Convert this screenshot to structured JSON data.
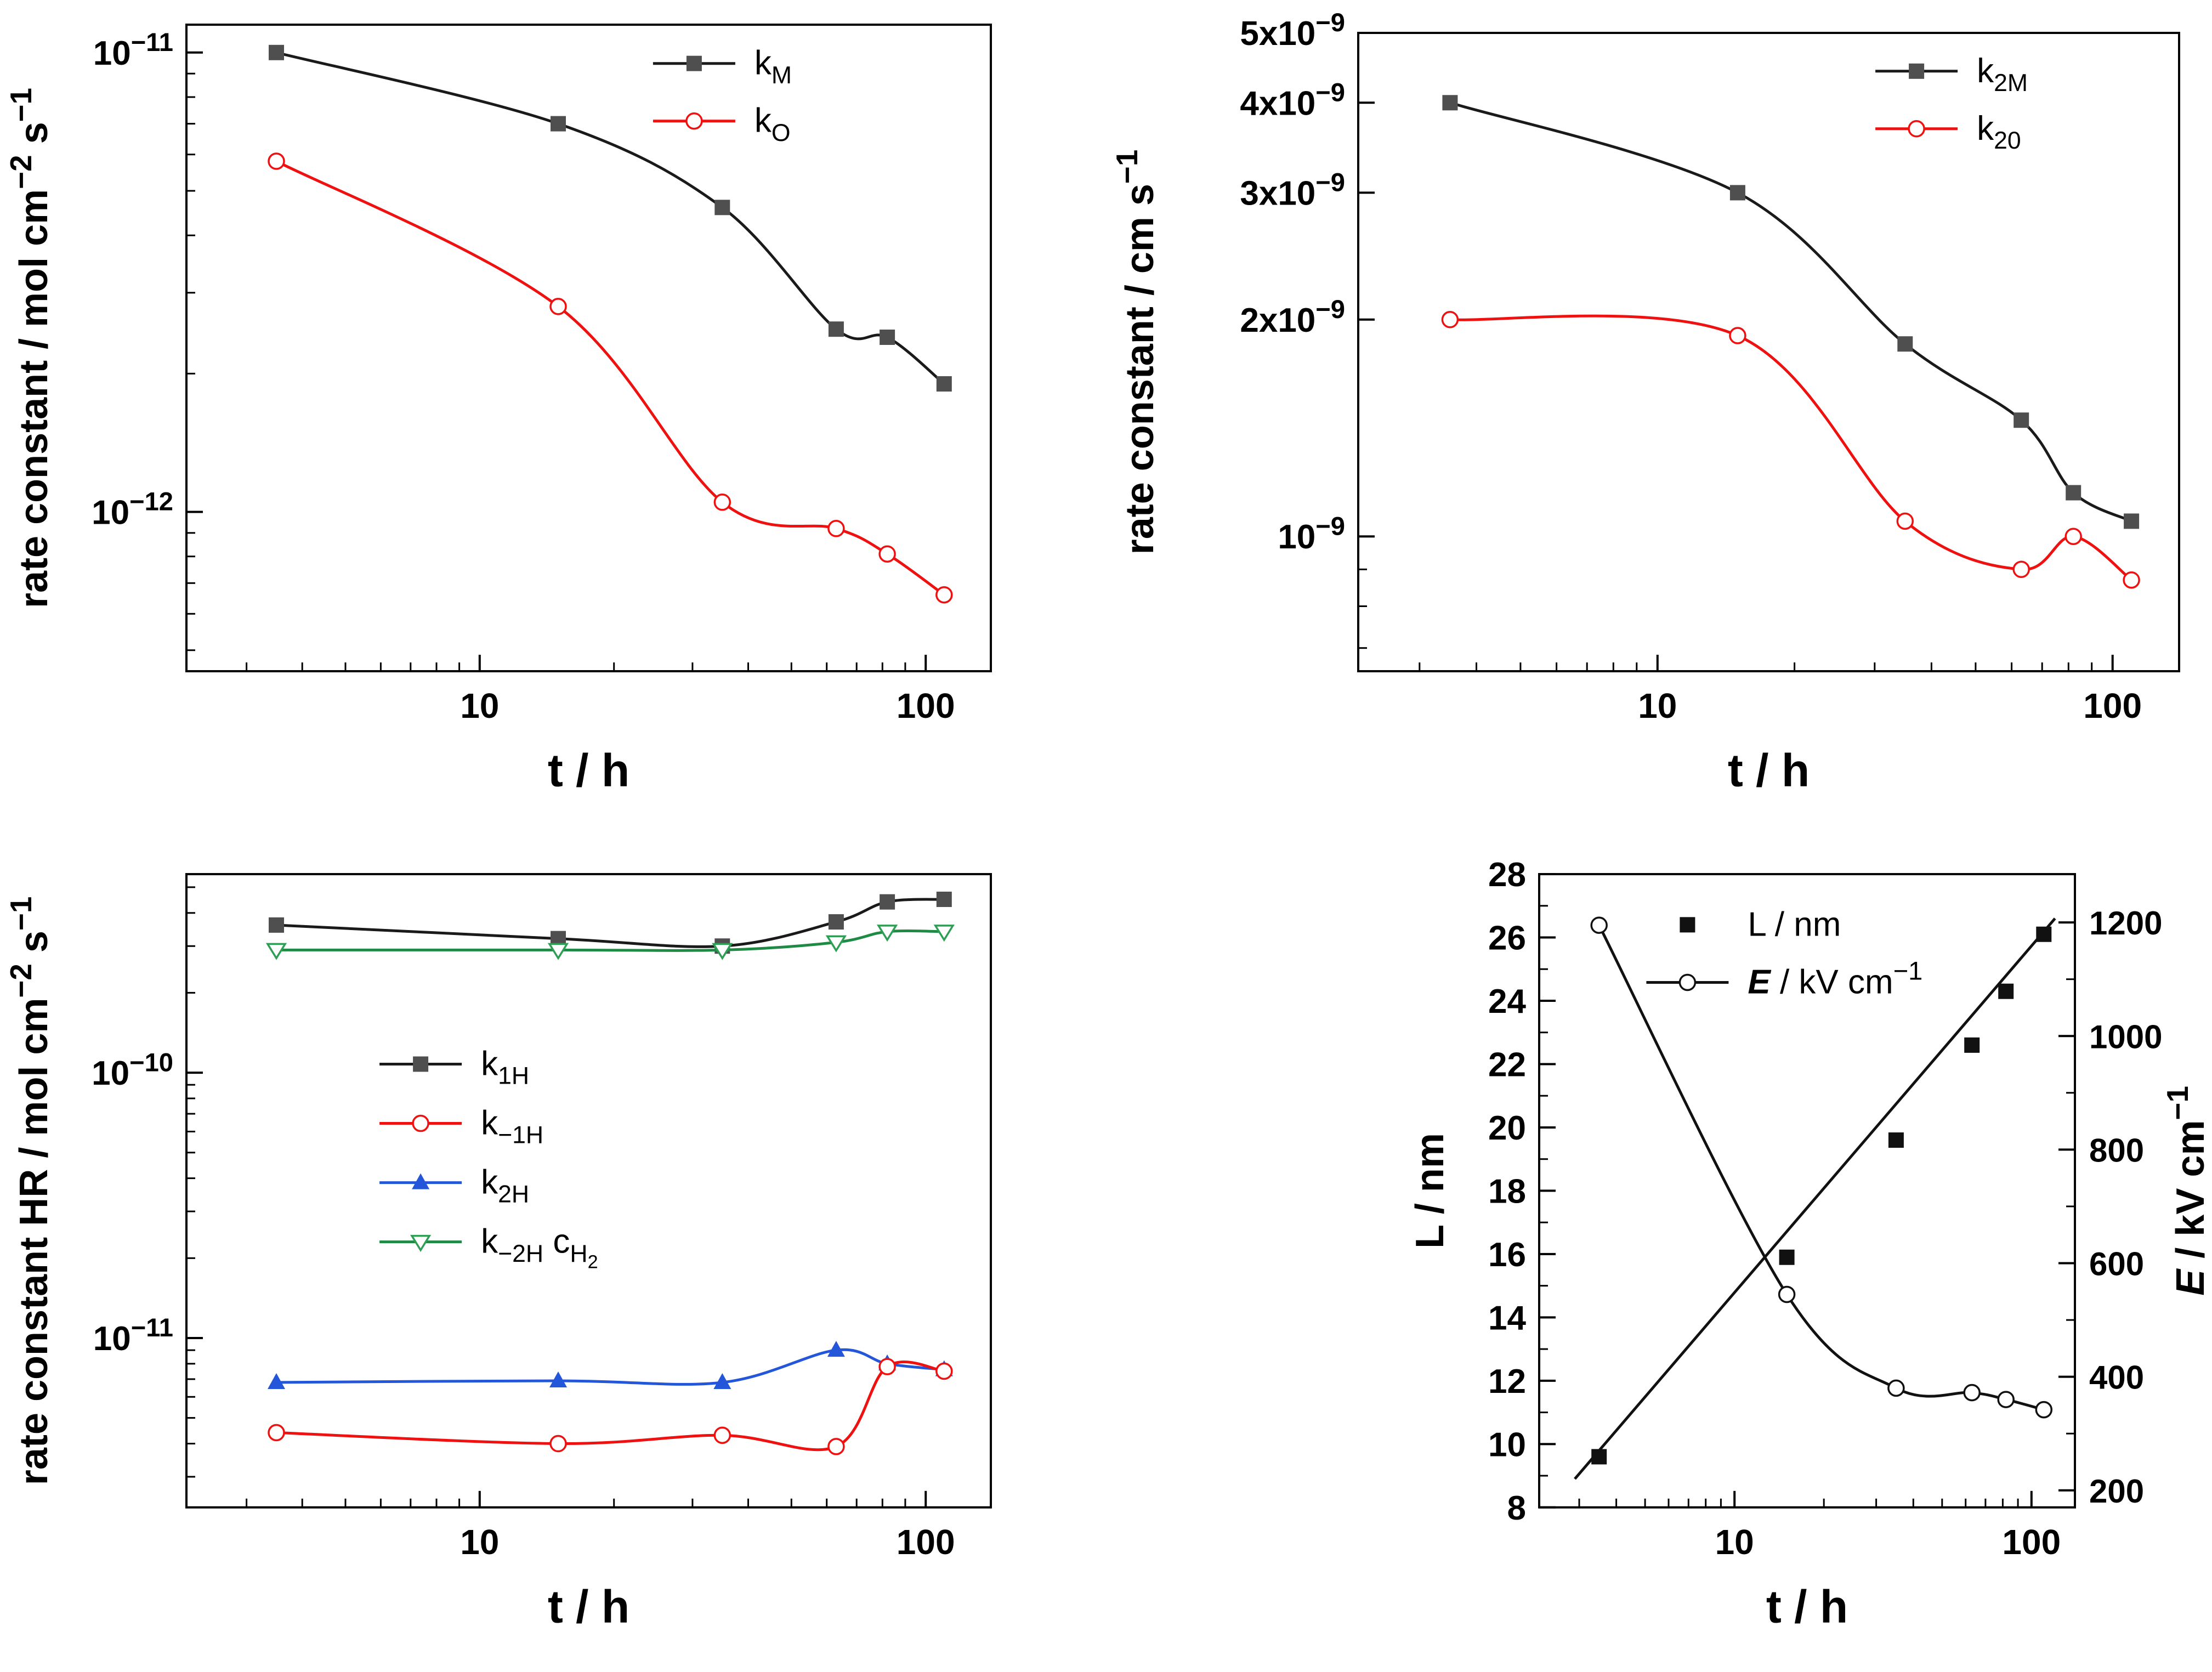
{
  "figure": {
    "background": "#ffffff",
    "axis_color": "#000000"
  },
  "chart_data": [
    {
      "id": "rate-constants-M-O",
      "type": "line",
      "x_axis": {
        "scale": "log",
        "min": 2.2,
        "max": 140,
        "title": [
          [
            "t / h",
            ""
          ]
        ],
        "ticks": [
          {
            "v": 10,
            "label": "10"
          },
          {
            "v": 100,
            "label": "100"
          }
        ]
      },
      "y_axis": {
        "scale": "log",
        "min": 4.5e-13,
        "max": 1.15e-11,
        "title": [
          [
            "rate constant / mol cm",
            ""
          ],
          [
            "−2",
            "sup"
          ],
          [
            " s",
            ""
          ],
          [
            "−1",
            "sup"
          ]
        ],
        "ticks": [
          {
            "v": 1e-12,
            "label": [
              [
                "10",
                ""
              ],
              [
                "−12",
                "sup"
              ]
            ]
          },
          {
            "v": 1e-11,
            "label": [
              [
                "10",
                ""
              ],
              [
                "−11",
                "sup"
              ]
            ]
          }
        ]
      },
      "legend": {
        "x": 0.58,
        "y": 0.06,
        "dy": 105,
        "order": [
          "kM",
          "kO"
        ]
      },
      "series": [
        {
          "id": "kM",
          "label": [
            [
              "k",
              ""
            ],
            [
              "M",
              "sub"
            ]
          ],
          "line_color": "#1a1a1a",
          "marker": "square",
          "marker_color": "#4f4f4f",
          "x": [
            3.5,
            15,
            35,
            63,
            82,
            110
          ],
          "y": [
            1e-11,
            7e-12,
            4.6e-12,
            2.5e-12,
            2.4e-12,
            1.9e-12
          ]
        },
        {
          "id": "kO",
          "label": [
            [
              "k",
              ""
            ],
            [
              "O",
              "sub"
            ]
          ],
          "line_color": "#ef1010",
          "marker": "circle-open",
          "marker_color": "#ef1010",
          "x": [
            3.5,
            15,
            35,
            63,
            82,
            110
          ],
          "y": [
            5.8e-12,
            2.8e-12,
            1.05e-12,
            9.2e-13,
            8.1e-13,
            6.6e-13
          ]
        }
      ]
    },
    {
      "id": "rate-constants-2M-2O",
      "type": "line",
      "x_axis": {
        "scale": "log",
        "min": 2.2,
        "max": 140,
        "title": [
          [
            "t / h",
            ""
          ]
        ],
        "ticks": [
          {
            "v": 10,
            "label": "10"
          },
          {
            "v": 100,
            "label": "100"
          }
        ]
      },
      "y_axis": {
        "scale": "log",
        "min": 6.5e-10,
        "max": 5e-09,
        "title": [
          [
            "rate constant  / cm s",
            ""
          ],
          [
            "−1",
            "sup"
          ]
        ],
        "ticks": [
          {
            "v": 1e-09,
            "label": [
              [
                "10",
                ""
              ],
              [
                "−9",
                "sup"
              ]
            ]
          },
          {
            "v": 2e-09,
            "label": [
              [
                "2x10",
                ""
              ],
              [
                "−9",
                "sup"
              ]
            ]
          },
          {
            "v": 3e-09,
            "label": [
              [
                "3x10",
                ""
              ],
              [
                "−9",
                "sup"
              ]
            ]
          },
          {
            "v": 4e-09,
            "label": [
              [
                "4x10",
                ""
              ],
              [
                "−9",
                "sup"
              ]
            ]
          },
          {
            "v": 5e-09,
            "label": [
              [
                "5x10",
                ""
              ],
              [
                "−9",
                "sup"
              ]
            ]
          }
        ]
      },
      "legend": {
        "x": 0.63,
        "y": 0.06,
        "dy": 105,
        "order": [
          "k2M",
          "k20"
        ]
      },
      "series": [
        {
          "id": "k2M",
          "label": [
            [
              "k",
              ""
            ],
            [
              "2M",
              "sub"
            ]
          ],
          "line_color": "#1a1a1a",
          "marker": "square",
          "marker_color": "#4f4f4f",
          "x": [
            3.5,
            15,
            35,
            63,
            82,
            110
          ],
          "y": [
            4e-09,
            3e-09,
            1.85e-09,
            1.45e-09,
            1.15e-09,
            1.05e-09
          ]
        },
        {
          "id": "k20",
          "label": [
            [
              "k",
              ""
            ],
            [
              "20",
              "sub"
            ]
          ],
          "line_color": "#ef1010",
          "marker": "circle-open",
          "marker_color": "#ef1010",
          "x": [
            3.5,
            15,
            35,
            63,
            82,
            110
          ],
          "y": [
            2e-09,
            1.9e-09,
            1.05e-09,
            9e-10,
            1e-09,
            8.7e-10
          ]
        }
      ]
    },
    {
      "id": "rate-constants-HR",
      "type": "line",
      "x_axis": {
        "scale": "log",
        "min": 2.2,
        "max": 140,
        "title": [
          [
            "t / h",
            ""
          ]
        ],
        "ticks": [
          {
            "v": 10,
            "label": "10"
          },
          {
            "v": 100,
            "label": "100"
          }
        ]
      },
      "y_axis": {
        "scale": "log",
        "min": 2.3e-12,
        "max": 5.6e-10,
        "title": [
          [
            "rate constant HR / mol cm",
            ""
          ],
          [
            "−2",
            "sup"
          ],
          [
            " s",
            ""
          ],
          [
            "−1",
            "sup"
          ]
        ],
        "ticks": [
          {
            "v": 1e-11,
            "label": [
              [
                "10",
                ""
              ],
              [
                "−11",
                "sup"
              ]
            ]
          },
          {
            "v": 1e-10,
            "label": [
              [
                "10",
                ""
              ],
              [
                "−10",
                "sup"
              ]
            ]
          }
        ]
      },
      "legend": {
        "x": 0.24,
        "y": 0.3,
        "dy": 108,
        "order": [
          "k1H",
          "km1H",
          "k2H",
          "km2H"
        ]
      },
      "series": [
        {
          "id": "k1H",
          "label": [
            [
              "k",
              ""
            ],
            [
              "1H",
              "sub"
            ]
          ],
          "line_color": "#1a1a1a",
          "marker": "square",
          "marker_color": "#4f4f4f",
          "x": [
            3.5,
            15,
            35,
            63,
            82,
            110
          ],
          "y": [
            3.6e-10,
            3.2e-10,
            3e-10,
            3.7e-10,
            4.4e-10,
            4.5e-10
          ]
        },
        {
          "id": "km2H",
          "label": [
            [
              "k",
              ""
            ],
            [
              "−2H",
              "sub"
            ],
            [
              " c",
              ""
            ],
            [
              "H",
              "sub"
            ],
            [
              "2",
              "subsub"
            ]
          ],
          "line_color": "#1f8a44",
          "marker": "triangle-down-open",
          "marker_color": "#2f9e55",
          "x": [
            3.5,
            15,
            35,
            63,
            82,
            110
          ],
          "y": [
            2.9e-10,
            2.9e-10,
            2.9e-10,
            3.1e-10,
            3.4e-10,
            3.4e-10
          ]
        },
        {
          "id": "k2H",
          "label": [
            [
              "k",
              ""
            ],
            [
              "2H",
              "sub"
            ]
          ],
          "line_color": "#2356d8",
          "marker": "triangle-up",
          "marker_color": "#2356d8",
          "x": [
            3.5,
            15,
            35,
            63,
            82,
            110
          ],
          "y": [
            6.8e-12,
            6.9e-12,
            6.8e-12,
            9e-12,
            8e-12,
            7.6e-12
          ]
        },
        {
          "id": "km1H",
          "label": [
            [
              "k",
              ""
            ],
            [
              "−1H",
              "sub"
            ]
          ],
          "line_color": "#ef1010",
          "marker": "circle-open",
          "marker_color": "#ef1010",
          "x": [
            3.5,
            15,
            35,
            63,
            82,
            110
          ],
          "y": [
            4.4e-12,
            4e-12,
            4.3e-12,
            3.9e-12,
            7.8e-12,
            7.5e-12
          ]
        }
      ]
    },
    {
      "id": "grain-size-and-field",
      "type": "line",
      "x_axis": {
        "scale": "log",
        "min": 2.2,
        "max": 140,
        "title": [
          [
            "t / h",
            ""
          ]
        ],
        "ticks": [
          {
            "v": 10,
            "label": "10"
          },
          {
            "v": 100,
            "label": "100"
          }
        ]
      },
      "y_axis": {
        "scale": "linear",
        "min": 8,
        "max": 28,
        "minor_step": 1,
        "title": [
          [
            "L / nm",
            ""
          ]
        ],
        "ticks": [
          {
            "v": 8,
            "label": "8"
          },
          {
            "v": 10,
            "label": "10"
          },
          {
            "v": 12,
            "label": "12"
          },
          {
            "v": 14,
            "label": "14"
          },
          {
            "v": 16,
            "label": "16"
          },
          {
            "v": 18,
            "label": "18"
          },
          {
            "v": 20,
            "label": "20"
          },
          {
            "v": 22,
            "label": "22"
          },
          {
            "v": 24,
            "label": "24"
          },
          {
            "v": 26,
            "label": "26"
          },
          {
            "v": 28,
            "label": "28"
          }
        ]
      },
      "y2_axis": {
        "scale": "linear",
        "min": 170,
        "max": 1285,
        "minor_step": 100,
        "title": [
          [
            "E",
            "bolditalic"
          ],
          [
            " / kV cm",
            ""
          ],
          [
            "−1",
            "sup"
          ]
        ],
        "ticks": [
          {
            "v": 200,
            "label": "200"
          },
          {
            "v": 400,
            "label": "400"
          },
          {
            "v": 600,
            "label": "600"
          },
          {
            "v": 800,
            "label": "800"
          },
          {
            "v": 1000,
            "label": "1000"
          },
          {
            "v": 1200,
            "label": "1200"
          }
        ]
      },
      "legend": {
        "x": 0.2,
        "y": 0.08,
        "dy": 105,
        "order": [
          "L",
          "E"
        ]
      },
      "series": [
        {
          "id": "L",
          "label": [
            [
              "L / nm",
              ""
            ]
          ],
          "axis": "y",
          "legend_line": false,
          "line_color": "#111111",
          "marker": "square",
          "marker_color": "#111111",
          "x": [
            3.5,
            15,
            35,
            63,
            82,
            110
          ],
          "y": [
            9.6,
            15.9,
            19.6,
            22.6,
            24.3,
            26.1
          ],
          "fit_x": [
            2.9,
            120
          ],
          "fit_y": [
            8.9,
            26.6
          ]
        },
        {
          "id": "E",
          "label": [
            [
              "E",
              "bolditalic"
            ],
            [
              " / kV cm",
              ""
            ],
            [
              "−1",
              "sup"
            ]
          ],
          "axis": "y2",
          "line_color": "#111111",
          "marker": "circle-open",
          "marker_color": "#111111",
          "x": [
            3.5,
            15,
            35,
            63,
            82,
            110
          ],
          "y": [
            1195,
            545,
            380,
            372,
            360,
            342
          ]
        }
      ]
    }
  ]
}
